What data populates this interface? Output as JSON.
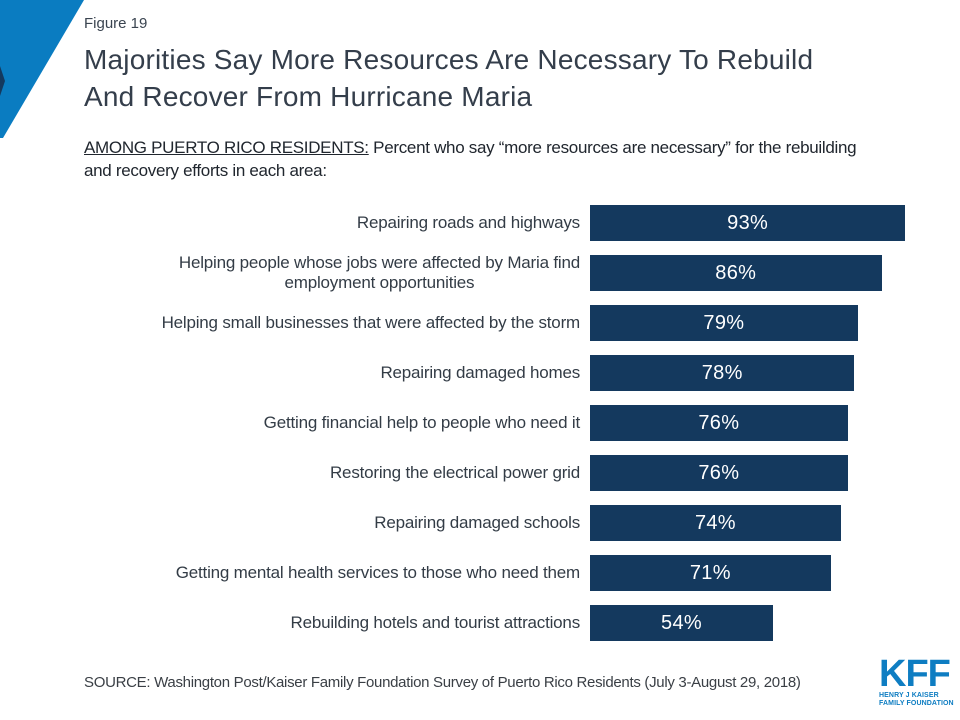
{
  "header": {
    "figure_label": "Figure 19",
    "title_line1": "Majorities Say More Resources Are Necessary To Rebuild",
    "title_line2": "And Recover From Hurricane Maria",
    "subtitle_emphasis": "AMONG PUERTO RICO RESIDENTS:",
    "subtitle_rest": " Percent who say “more resources are necessary” for the rebuilding and recovery efforts in each area:"
  },
  "chart_data": {
    "type": "bar",
    "orientation": "horizontal",
    "categories": [
      "Repairing roads and highways",
      "Helping people whose jobs were affected by Maria find\nemployment opportunities",
      "Helping small businesses that were affected by the storm",
      "Repairing damaged homes",
      "Getting financial help to people who need it",
      "Restoring the electrical power grid",
      "Repairing damaged schools",
      "Getting mental health services to those who need them",
      "Rebuilding hotels and tourist attractions"
    ],
    "values": [
      93,
      86,
      79,
      78,
      76,
      76,
      74,
      71,
      54
    ],
    "value_labels": [
      "93%",
      "86%",
      "79%",
      "78%",
      "76%",
      "76%",
      "74%",
      "71%",
      "54%"
    ],
    "xlim": [
      0,
      100
    ],
    "bar_color": "#14395e",
    "value_label_color": "#ffffff",
    "value_label_position": "inside-center",
    "grid": false,
    "legend": false,
    "axis_lines": false
  },
  "footer": {
    "source": "SOURCE: Washington Post/Kaiser Family Foundation Survey of Puerto Rico Residents (July 3-August 29, 2018)",
    "logo": {
      "text": "KFF",
      "tagline_line1": "HENRY J KAISER",
      "tagline_line2": "FAMILY FOUNDATION",
      "color": "#0e7dc2"
    }
  },
  "decoration": {
    "triangle_blue": "#0a7cc1",
    "triangle_navy": "#14395e"
  }
}
